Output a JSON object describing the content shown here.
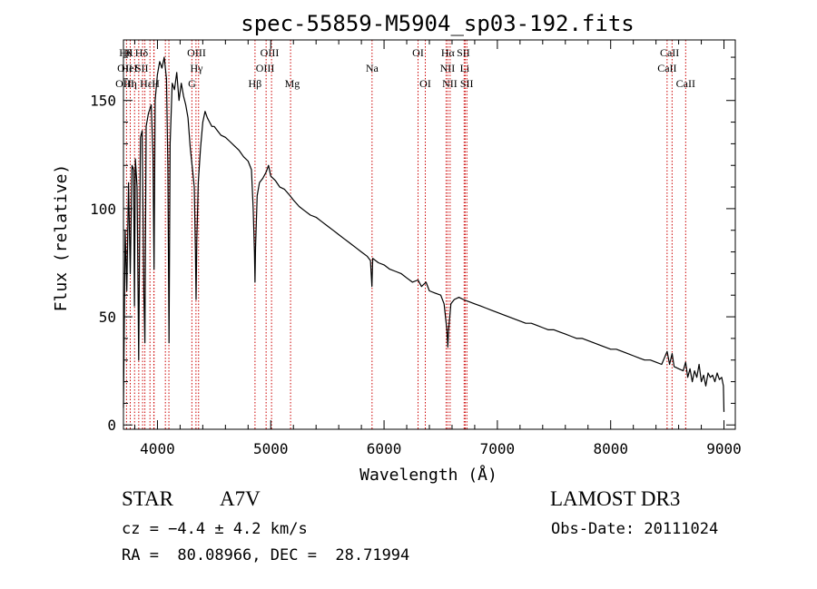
{
  "chart_data": {
    "type": "line",
    "title": "spec-55859-M5904_sp03-192.fits",
    "xlabel": "Wavelength (Å)",
    "ylabel": "Flux (relative)",
    "xlim": [
      3700,
      9100
    ],
    "ylim": [
      -2,
      178
    ],
    "x_ticks": [
      4000,
      5000,
      6000,
      7000,
      8000,
      9000
    ],
    "x_tick_labels": [
      "4000",
      "5000",
      "6000",
      "7000",
      "8000",
      "9000"
    ],
    "y_ticks": [
      0,
      50,
      100,
      150
    ],
    "y_tick_labels": [
      "0",
      "50",
      "100",
      "150"
    ],
    "series": [
      {
        "name": "flux",
        "points": [
          [
            3700,
            8
          ],
          [
            3715,
            90
          ],
          [
            3730,
            62
          ],
          [
            3745,
            112
          ],
          [
            3760,
            70
          ],
          [
            3775,
            120
          ],
          [
            3790,
            118
          ],
          [
            3797,
            55
          ],
          [
            3805,
            123
          ],
          [
            3820,
            110
          ],
          [
            3835,
            30
          ],
          [
            3850,
            133
          ],
          [
            3865,
            136
          ],
          [
            3880,
            60
          ],
          [
            3889,
            38
          ],
          [
            3900,
            138
          ],
          [
            3920,
            144
          ],
          [
            3945,
            148
          ],
          [
            3960,
            125
          ],
          [
            3970,
            72
          ],
          [
            3980,
            150
          ],
          [
            4000,
            162
          ],
          [
            4020,
            168
          ],
          [
            4040,
            165
          ],
          [
            4060,
            170
          ],
          [
            4080,
            160
          ],
          [
            4092,
            120
          ],
          [
            4102,
            38
          ],
          [
            4112,
            130
          ],
          [
            4130,
            158
          ],
          [
            4150,
            155
          ],
          [
            4170,
            163
          ],
          [
            4190,
            150
          ],
          [
            4210,
            158
          ],
          [
            4230,
            152
          ],
          [
            4250,
            148
          ],
          [
            4270,
            142
          ],
          [
            4290,
            128
          ],
          [
            4310,
            118
          ],
          [
            4325,
            110
          ],
          [
            4335,
            80
          ],
          [
            4341,
            58
          ],
          [
            4347,
            85
          ],
          [
            4360,
            112
          ],
          [
            4380,
            128
          ],
          [
            4400,
            140
          ],
          [
            4420,
            145
          ],
          [
            4440,
            142
          ],
          [
            4460,
            140
          ],
          [
            4480,
            138
          ],
          [
            4500,
            138
          ],
          [
            4530,
            136
          ],
          [
            4560,
            134
          ],
          [
            4600,
            133
          ],
          [
            4640,
            131
          ],
          [
            4680,
            129
          ],
          [
            4720,
            127
          ],
          [
            4760,
            124
          ],
          [
            4800,
            122
          ],
          [
            4830,
            118
          ],
          [
            4845,
            100
          ],
          [
            4856,
            80
          ],
          [
            4861,
            66
          ],
          [
            4866,
            82
          ],
          [
            4880,
            106
          ],
          [
            4900,
            112
          ],
          [
            4930,
            114
          ],
          [
            4960,
            117
          ],
          [
            4980,
            120
          ],
          [
            5000,
            115
          ],
          [
            5040,
            113
          ],
          [
            5080,
            110
          ],
          [
            5120,
            109
          ],
          [
            5170,
            106
          ],
          [
            5200,
            104
          ],
          [
            5250,
            101
          ],
          [
            5300,
            99
          ],
          [
            5350,
            97
          ],
          [
            5400,
            96
          ],
          [
            5450,
            94
          ],
          [
            5500,
            92
          ],
          [
            5550,
            90
          ],
          [
            5600,
            88
          ],
          [
            5650,
            86
          ],
          [
            5700,
            84
          ],
          [
            5750,
            82
          ],
          [
            5800,
            80
          ],
          [
            5850,
            78
          ],
          [
            5880,
            76
          ],
          [
            5893,
            64
          ],
          [
            5900,
            77
          ],
          [
            5950,
            75
          ],
          [
            6000,
            74
          ],
          [
            6050,
            72
          ],
          [
            6100,
            71
          ],
          [
            6150,
            70
          ],
          [
            6200,
            68
          ],
          [
            6250,
            66
          ],
          [
            6300,
            67
          ],
          [
            6330,
            64
          ],
          [
            6370,
            66
          ],
          [
            6400,
            62
          ],
          [
            6450,
            61
          ],
          [
            6500,
            60
          ],
          [
            6530,
            56
          ],
          [
            6555,
            44
          ],
          [
            6563,
            36
          ],
          [
            6570,
            44
          ],
          [
            6590,
            56
          ],
          [
            6620,
            58
          ],
          [
            6660,
            59
          ],
          [
            6700,
            58
          ],
          [
            6750,
            57
          ],
          [
            6800,
            56
          ],
          [
            6850,
            55
          ],
          [
            6900,
            54
          ],
          [
            6950,
            53
          ],
          [
            7000,
            52
          ],
          [
            7050,
            51
          ],
          [
            7100,
            50
          ],
          [
            7150,
            49
          ],
          [
            7200,
            48
          ],
          [
            7250,
            47
          ],
          [
            7300,
            47
          ],
          [
            7350,
            46
          ],
          [
            7400,
            45
          ],
          [
            7450,
            44
          ],
          [
            7500,
            44
          ],
          [
            7550,
            43
          ],
          [
            7600,
            42
          ],
          [
            7650,
            41
          ],
          [
            7700,
            40
          ],
          [
            7750,
            40
          ],
          [
            7800,
            39
          ],
          [
            7850,
            38
          ],
          [
            7900,
            37
          ],
          [
            7950,
            36
          ],
          [
            8000,
            35
          ],
          [
            8050,
            35
          ],
          [
            8100,
            34
          ],
          [
            8150,
            33
          ],
          [
            8200,
            32
          ],
          [
            8250,
            31
          ],
          [
            8300,
            30
          ],
          [
            8350,
            30
          ],
          [
            8400,
            29
          ],
          [
            8450,
            28
          ],
          [
            8498,
            34
          ],
          [
            8520,
            28
          ],
          [
            8542,
            33
          ],
          [
            8560,
            27
          ],
          [
            8600,
            26
          ],
          [
            8640,
            25
          ],
          [
            8662,
            29
          ],
          [
            8680,
            22
          ],
          [
            8700,
            26
          ],
          [
            8720,
            20
          ],
          [
            8740,
            25
          ],
          [
            8760,
            22
          ],
          [
            8780,
            28
          ],
          [
            8800,
            20
          ],
          [
            8820,
            23
          ],
          [
            8840,
            18
          ],
          [
            8860,
            24
          ],
          [
            8880,
            22
          ],
          [
            8900,
            23
          ],
          [
            8920,
            20
          ],
          [
            8940,
            24
          ],
          [
            8960,
            21
          ],
          [
            8980,
            22
          ],
          [
            8995,
            18
          ],
          [
            9000,
            6
          ]
        ]
      }
    ],
    "lines": [
      {
        "x": 3727,
        "labels": [
          "OII"
        ]
      },
      {
        "x": 3760,
        "labels": [
          "OIII"
        ]
      },
      {
        "x": 3798,
        "labels": [
          "Hθ"
        ]
      },
      {
        "x": 3835,
        "labels": [
          "Hη"
        ]
      },
      {
        "x": 3869,
        "labels": [
          "NeIII"
        ]
      },
      {
        "x": 3889,
        "labels": [
          "HeI"
        ]
      },
      {
        "x": 3934,
        "labels": [
          "K"
        ]
      },
      {
        "x": 3968,
        "labels": [
          "H"
        ]
      },
      {
        "x": 3970,
        "labels": [
          "Hε"
        ]
      },
      {
        "x": 4101,
        "labels": [
          "Hδ"
        ]
      },
      {
        "x": 4070,
        "labels": [
          "SII"
        ]
      },
      {
        "x": 4304,
        "labels": [
          "G"
        ]
      },
      {
        "x": 4340,
        "labels": [
          "Hγ"
        ]
      },
      {
        "x": 4363,
        "labels": [
          "OIII"
        ]
      },
      {
        "x": 4861,
        "labels": [
          "Hβ"
        ]
      },
      {
        "x": 4959,
        "labels": [
          "OIII"
        ]
      },
      {
        "x": 5007,
        "labels": [
          "OIII"
        ]
      },
      {
        "x": 5175,
        "labels": [
          "Mg"
        ]
      },
      {
        "x": 5894,
        "labels": [
          "Na"
        ]
      },
      {
        "x": 6300,
        "labels": [
          "OI"
        ]
      },
      {
        "x": 6364,
        "labels": [
          "OI"
        ]
      },
      {
        "x": 6548,
        "labels": [
          "NII"
        ]
      },
      {
        "x": 6563,
        "labels": [
          "Hα"
        ]
      },
      {
        "x": 6583,
        "labels": [
          "NII"
        ]
      },
      {
        "x": 6707,
        "labels": [
          "Li"
        ]
      },
      {
        "x": 6716,
        "labels": [
          "SII"
        ]
      },
      {
        "x": 6731,
        "labels": [
          "SII"
        ]
      },
      {
        "x": 8498,
        "labels": [
          "CaII"
        ]
      },
      {
        "x": 8542,
        "labels": [
          "CaII"
        ]
      },
      {
        "x": 8662,
        "labels": [
          "CaII"
        ]
      }
    ],
    "line_label_groups": [
      {
        "x": 3720,
        "row": 1,
        "text": "Hθ"
      },
      {
        "x": 3752,
        "row": 1,
        "text": "K"
      },
      {
        "x": 3860,
        "row": 1,
        "text": "Hδ"
      },
      {
        "x": 3712,
        "row": 2,
        "text": "OII"
      },
      {
        "x": 3752,
        "row": 2,
        "text": "HeI"
      },
      {
        "x": 3862,
        "row": 2,
        "text": "SII"
      },
      {
        "x": 3712,
        "row": 3,
        "text": "OIII"
      },
      {
        "x": 3760,
        "row": 3,
        "text": "Hη"
      },
      {
        "x": 3900,
        "row": 3,
        "text": "Hε"
      },
      {
        "x": 3985,
        "row": 3,
        "text": "H"
      },
      {
        "x": 4345,
        "row": 1,
        "text": "OIII"
      },
      {
        "x": 4345,
        "row": 2,
        "text": "Hγ"
      },
      {
        "x": 4305,
        "row": 3,
        "text": "G"
      },
      {
        "x": 4861,
        "row": 3,
        "text": "Hβ"
      },
      {
        "x": 4990,
        "row": 1,
        "text": "OIII"
      },
      {
        "x": 4950,
        "row": 2,
        "text": "OIII"
      },
      {
        "x": 5190,
        "row": 3,
        "text": "Mg"
      },
      {
        "x": 5894,
        "row": 2,
        "text": "Na"
      },
      {
        "x": 6300,
        "row": 1,
        "text": "OI"
      },
      {
        "x": 6364,
        "row": 3,
        "text": "OI"
      },
      {
        "x": 6563,
        "row": 1,
        "text": "Hα"
      },
      {
        "x": 6560,
        "row": 2,
        "text": "NII"
      },
      {
        "x": 6580,
        "row": 3,
        "text": "NII"
      },
      {
        "x": 6700,
        "row": 1,
        "text": "SII"
      },
      {
        "x": 6712,
        "row": 2,
        "text": "Li"
      },
      {
        "x": 6730,
        "row": 3,
        "text": "SII"
      },
      {
        "x": 8520,
        "row": 1,
        "text": "CaII"
      },
      {
        "x": 8498,
        "row": 2,
        "text": "CaII"
      },
      {
        "x": 8662,
        "row": 3,
        "text": "CaII"
      }
    ],
    "colors": {
      "spectrum": "#000000",
      "lines": "#cc0000",
      "axes": "#000000",
      "background": "#ffffff"
    }
  },
  "info": {
    "object_class": "STAR",
    "subclass": "A7V",
    "survey": "LAMOST DR3",
    "cz": "cz = −4.4 ± 4.2 km/s",
    "obs_date": "Obs-Date: 20111024",
    "coords": "RA =  80.08966, DEC =  28.71994"
  }
}
